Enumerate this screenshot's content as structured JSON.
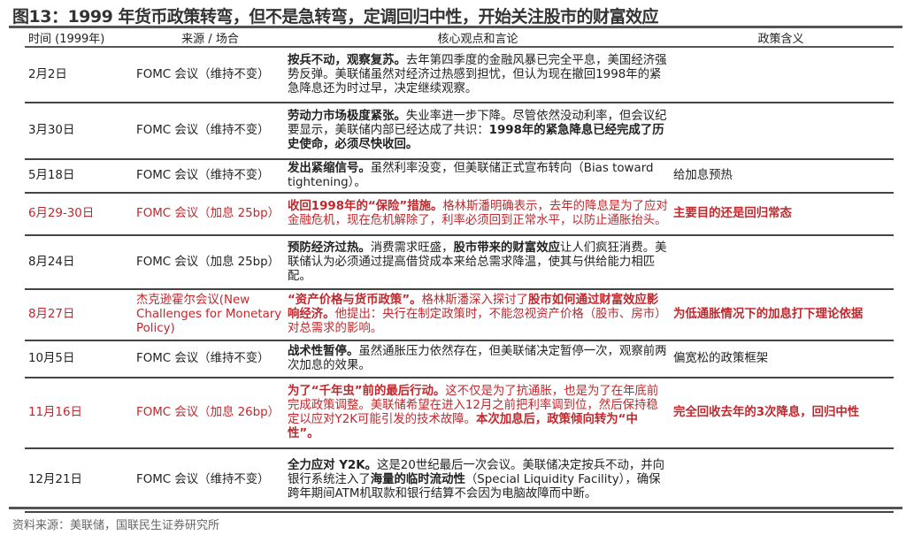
{
  "title": "图13：1999 年货币政策转弯，但不是急转弯，定调回归中性，开始关注股市的财富效应",
  "headers": [
    "时间 (1999年)",
    "来源 / 场合",
    "核心观点和言论",
    "政策含义"
  ],
  "accent_red": "#c0282d",
  "rows": [
    {
      "date": "2月2日",
      "source": "FOMC 会议（维持不变）",
      "red": false,
      "height": 63,
      "content": [
        {
          "t": "按兵不动，观察复苏。",
          "b": true
        },
        {
          "t": "去年第四季度的金融风暴已完全平息，美国经济强势反弹。美联储虽然对经济过热感到担忧，但认为现在撤回1998年的紧急降息还为时过早，决定继续观察。",
          "b": false
        }
      ],
      "implication": ""
    },
    {
      "date": "3月30日",
      "source": "FOMC 会议（维持不变）",
      "red": false,
      "height": 64,
      "content": [
        {
          "t": "劳动力市场极度紧张。",
          "b": true
        },
        {
          "t": "失业率进一步下降。尽管依然没动利率，但会议纪要显示，美联储内部已经达成了共识：",
          "b": false
        },
        {
          "t": "1998年的紧急降息已经完成了历史使命，必须尽快收回。",
          "b": true
        }
      ],
      "implication": ""
    },
    {
      "date": "5月18日",
      "source": "FOMC 会议（维持不变）",
      "red": false,
      "height": 34,
      "content": [
        {
          "t": "发出紧缩信号。",
          "b": true
        },
        {
          "t": "虽然利率没变，但美联储正式宣布转向（Bias toward tightening）。",
          "b": false
        }
      ],
      "implication": "给加息预热"
    },
    {
      "date": "6月29-30日",
      "source": "FOMC 会议（加息 25bp）",
      "red": true,
      "height": 48,
      "content": [
        {
          "t": "收回1998年的“保险”措施。",
          "b": true
        },
        {
          "t": "格林斯潘明确表示，去年的降息是为了应对金融危机，现在危机解除了，利率必须回到正常水平，以防止通胀抬头。",
          "b": false
        }
      ],
      "implication": "主要目的还是回归常态"
    },
    {
      "date": "8月24日",
      "source": "FOMC 会议（加息 25bp）",
      "red": false,
      "height": 61,
      "content": [
        {
          "t": "预防经济过热。",
          "b": true
        },
        {
          "t": "消费需求旺盛，",
          "b": false
        },
        {
          "t": "股市带来的财富效应",
          "b": true
        },
        {
          "t": "让人们疯狂消费。美联储认为必须通过提高借贷成本来给总需求降温，使其与供给能力相匹配。",
          "b": false
        }
      ],
      "implication": ""
    },
    {
      "date": "8月27日",
      "source": "杰克逊霍尔会议(New Challenges for Monetary Policy)",
      "red": true,
      "height": 58,
      "content": [
        {
          "t": "“资产价格与货币政策”。",
          "b": true
        },
        {
          "t": "格林斯潘深入探讨了",
          "b": false
        },
        {
          "t": "股市如何通过财富效应影响经济。",
          "b": true
        },
        {
          "t": "他提出：央行在制定政策时，不能忽视资产价格（股市、房市）对总需求的影响。",
          "b": false
        }
      ],
      "implication": "为低通胀情况下的加息打下理论依据"
    },
    {
      "date": "10月5日",
      "source": "FOMC 会议（维持不变）",
      "red": false,
      "height": 42,
      "content": [
        {
          "t": "战术性暂停。",
          "b": true
        },
        {
          "t": "虽然通胀压力依然存在，但美联储决定暂停一次，观察前两次加息的效果。",
          "b": false
        }
      ],
      "implication": "偏宽松的政策框架"
    },
    {
      "date": "11月16日",
      "source": "FOMC 会议（加息 26bp）",
      "red": true,
      "height": 80,
      "content": [
        {
          "t": "为了“千年虫”前的最后行动。",
          "b": true
        },
        {
          "t": "这不仅是为了抗通胀，也是为了在年底前完成政策调整。美联储希望在进入12月之前把利率调到位，然后保持稳定以应对Y2K可能引发的技术故障。",
          "b": false
        },
        {
          "t": "本次加息后，政策倾向转为“中性”。",
          "b": true
        }
      ],
      "implication": "完全回收去年的3次降息，回归中性"
    },
    {
      "date": "12月21日",
      "source": "FOMC 会议（维持不变）",
      "red": false,
      "height": 72,
      "content": [
        {
          "t": "全力应对 Y2K。",
          "b": true
        },
        {
          "t": "这是20世纪最后一次会议。美联储决定按兵不动，并向银行系统注入了",
          "b": false
        },
        {
          "t": "海量的临时流动性",
          "b": true
        },
        {
          "t": "（Special Liquidity Facility），确保跨年期间ATM机取款和银行结算不会因为电脑故障而中断。",
          "b": false
        }
      ],
      "implication": ""
    }
  ],
  "source_note": "资料来源：美联储，国联民生证券研究所"
}
